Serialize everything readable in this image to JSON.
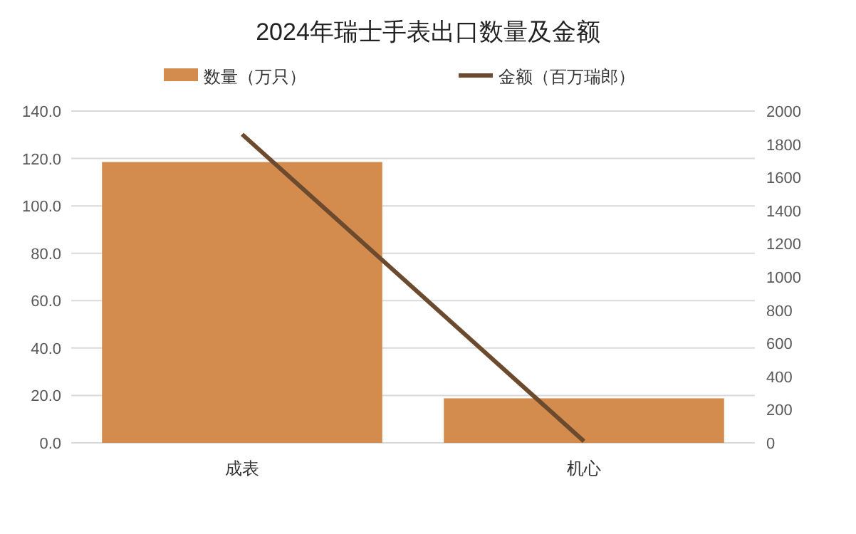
{
  "chart_data": {
    "type": "bar",
    "title": "2024年瑞士手表出口数量及金额",
    "categories": [
      "成表",
      "机心"
    ],
    "series": [
      {
        "name": "数量（万只）",
        "color": "#d48c4e",
        "values": [
          118.5,
          18.8
        ]
      },
      {
        "name": "金额（百万瑞郎）",
        "type": "line",
        "axis": "y2",
        "color": "#6b4a2e",
        "values": [
          1860,
          10
        ]
      }
    ],
    "ylim": [
      0,
      140
    ],
    "yticks": [
      {
        "value": 0,
        "label": "0.0"
      },
      {
        "value": 20,
        "label": "20.0"
      },
      {
        "value": 40,
        "label": "40.0"
      },
      {
        "value": 60,
        "label": "60.0"
      },
      {
        "value": 80,
        "label": "80.0"
      },
      {
        "value": 100,
        "label": "100.0"
      },
      {
        "value": 120,
        "label": "120.0"
      },
      {
        "value": 140,
        "label": "140.0"
      }
    ],
    "y2lim": [
      0,
      2000
    ],
    "y2ticks": [
      0,
      200,
      400,
      600,
      800,
      1000,
      1200,
      1400,
      1600,
      1800,
      2000
    ],
    "grid": "y",
    "legend": "top",
    "marker": "none"
  }
}
